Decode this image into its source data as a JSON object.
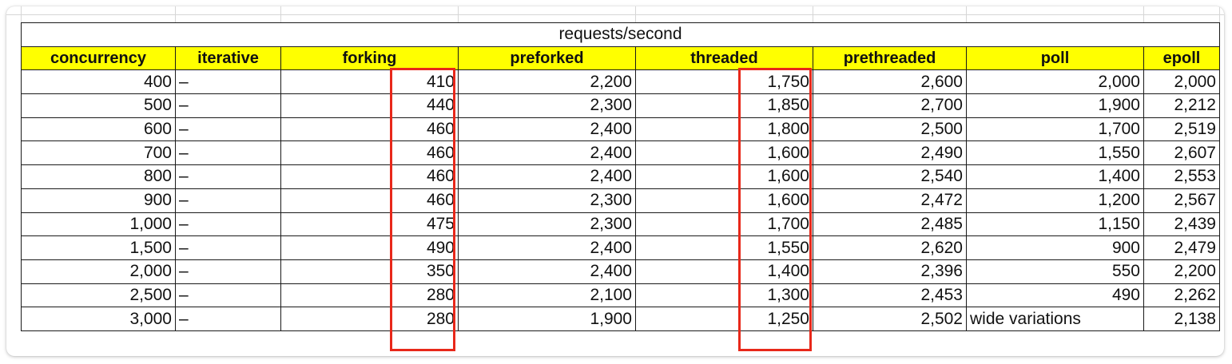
{
  "table": {
    "title": "requests/second",
    "headers": [
      "concurrency",
      "iterative",
      "forking",
      "preforked",
      "threaded",
      "prethreaded",
      "poll",
      "epoll"
    ],
    "rows": [
      [
        "400",
        "–",
        "410",
        "2,200",
        "1,750",
        "2,600",
        "2,000",
        "2,000"
      ],
      [
        "500",
        "–",
        "440",
        "2,300",
        "1,850",
        "2,700",
        "1,900",
        "2,212"
      ],
      [
        "600",
        "–",
        "460",
        "2,400",
        "1,800",
        "2,500",
        "1,700",
        "2,519"
      ],
      [
        "700",
        "–",
        "460",
        "2,400",
        "1,600",
        "2,490",
        "1,550",
        "2,607"
      ],
      [
        "800",
        "–",
        "460",
        "2,400",
        "1,600",
        "2,540",
        "1,400",
        "2,553"
      ],
      [
        "900",
        "–",
        "460",
        "2,300",
        "1,600",
        "2,472",
        "1,200",
        "2,567"
      ],
      [
        "1,000",
        "–",
        "475",
        "2,300",
        "1,700",
        "2,485",
        "1,150",
        "2,439"
      ],
      [
        "1,500",
        "–",
        "490",
        "2,400",
        "1,550",
        "2,620",
        "900",
        "2,479"
      ],
      [
        "2,000",
        "–",
        "350",
        "2,400",
        "1,400",
        "2,396",
        "550",
        "2,200"
      ],
      [
        "2,500",
        "–",
        "280",
        "2,100",
        "1,300",
        "2,453",
        "490",
        "2,262"
      ],
      [
        "3,000",
        "–",
        "280",
        "1,900",
        "1,250",
        "2,502",
        "wide variations",
        "2,138"
      ]
    ]
  },
  "colors": {
    "header_fill": "#ffff00",
    "highlight_border": "#e8281a"
  }
}
